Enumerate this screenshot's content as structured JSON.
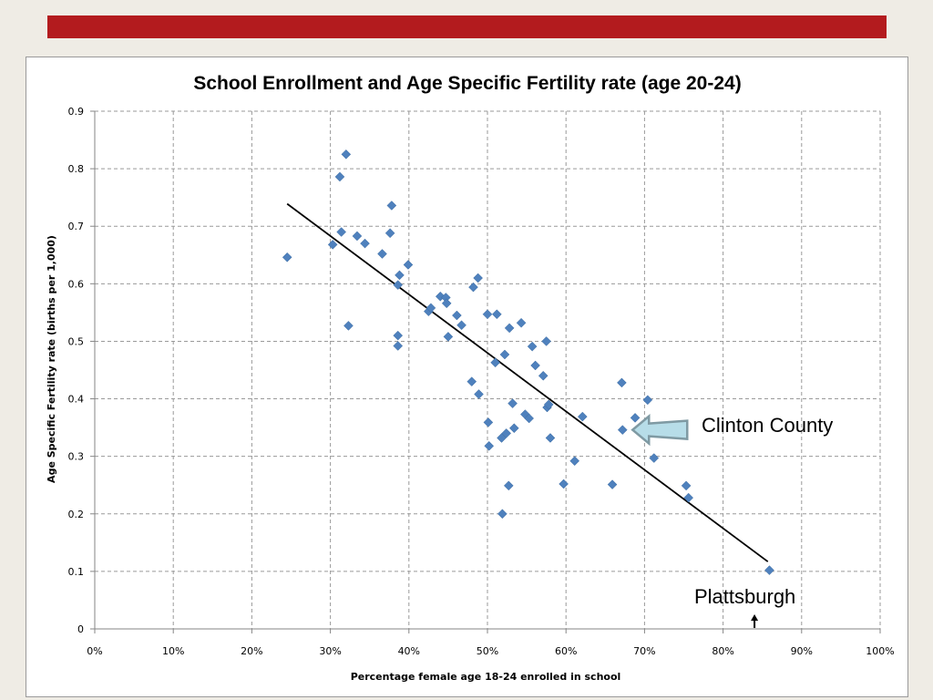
{
  "slide": {
    "accent_color": "#b31b1e"
  },
  "chart_data": {
    "type": "scatter",
    "title": "School Enrollment and Age Specific Fertility rate (age 20-24)",
    "xlabel": "Percentage female  age 18-24 enrolled in school",
    "ylabel": "Age Specific Fertility rate (births per 1,000)",
    "xlim": [
      0,
      1
    ],
    "ylim": [
      0,
      0.9
    ],
    "x_ticks": [
      0,
      0.1,
      0.2,
      0.3,
      0.4,
      0.5,
      0.6,
      0.7,
      0.8,
      0.9,
      1.0
    ],
    "x_tick_labels": [
      "0%",
      "10%",
      "20%",
      "30%",
      "40%",
      "50%",
      "60%",
      "70%",
      "80%",
      "90%",
      "100%"
    ],
    "y_ticks": [
      0,
      0.1,
      0.2,
      0.3,
      0.4,
      0.5,
      0.6,
      0.7,
      0.8,
      0.9
    ],
    "y_tick_labels": [
      "0",
      "0.1",
      "0.2",
      "0.3",
      "0.4",
      "0.5",
      "0.6",
      "0.7",
      "0.8",
      "0.9"
    ],
    "grid": true,
    "marker_color": "#4f81bd",
    "series": [
      {
        "points": [
          [
            0.245,
            0.646
          ],
          [
            0.303,
            0.668
          ],
          [
            0.312,
            0.786
          ],
          [
            0.314,
            0.69
          ],
          [
            0.32,
            0.825
          ],
          [
            0.323,
            0.527
          ],
          [
            0.334,
            0.683
          ],
          [
            0.344,
            0.67
          ],
          [
            0.366,
            0.652
          ],
          [
            0.376,
            0.688
          ],
          [
            0.378,
            0.736
          ],
          [
            0.386,
            0.598
          ],
          [
            0.388,
            0.615
          ],
          [
            0.386,
            0.51
          ],
          [
            0.386,
            0.492
          ],
          [
            0.399,
            0.633
          ],
          [
            0.425,
            0.552
          ],
          [
            0.428,
            0.558
          ],
          [
            0.44,
            0.578
          ],
          [
            0.447,
            0.576
          ],
          [
            0.448,
            0.566
          ],
          [
            0.45,
            0.508
          ],
          [
            0.461,
            0.545
          ],
          [
            0.467,
            0.528
          ],
          [
            0.48,
            0.43
          ],
          [
            0.482,
            0.594
          ],
          [
            0.488,
            0.61
          ],
          [
            0.489,
            0.408
          ],
          [
            0.5,
            0.547
          ],
          [
            0.501,
            0.359
          ],
          [
            0.502,
            0.318
          ],
          [
            0.51,
            0.463
          ],
          [
            0.512,
            0.547
          ],
          [
            0.518,
            0.332
          ],
          [
            0.519,
            0.2
          ],
          [
            0.522,
            0.477
          ],
          [
            0.524,
            0.34
          ],
          [
            0.527,
            0.249
          ],
          [
            0.528,
            0.523
          ],
          [
            0.532,
            0.392
          ],
          [
            0.534,
            0.349
          ],
          [
            0.543,
            0.532
          ],
          [
            0.548,
            0.373
          ],
          [
            0.553,
            0.366
          ],
          [
            0.557,
            0.491
          ],
          [
            0.561,
            0.458
          ],
          [
            0.571,
            0.44
          ],
          [
            0.575,
            0.5
          ],
          [
            0.576,
            0.385
          ],
          [
            0.578,
            0.39
          ],
          [
            0.58,
            0.332
          ],
          [
            0.597,
            0.252
          ],
          [
            0.611,
            0.292
          ],
          [
            0.621,
            0.369
          ],
          [
            0.659,
            0.251
          ],
          [
            0.671,
            0.428
          ],
          [
            0.672,
            0.346
          ],
          [
            0.688,
            0.367
          ],
          [
            0.704,
            0.398
          ],
          [
            0.712,
            0.297
          ],
          [
            0.753,
            0.249
          ],
          [
            0.756,
            0.228
          ],
          [
            0.859,
            0.102
          ]
        ]
      }
    ],
    "trendline": {
      "x": [
        0.245,
        0.857
      ],
      "y": [
        0.739,
        0.117
      ],
      "color": "#000000"
    },
    "annotations": [
      {
        "text": "Clinton County",
        "points_to": [
          0.672,
          0.346
        ],
        "marker": "block-arrow",
        "color": "#b7dde8"
      },
      {
        "text": "Plattsburgh",
        "points_to": [
          0.84,
          0.0
        ],
        "marker": "small-arrow"
      }
    ]
  }
}
